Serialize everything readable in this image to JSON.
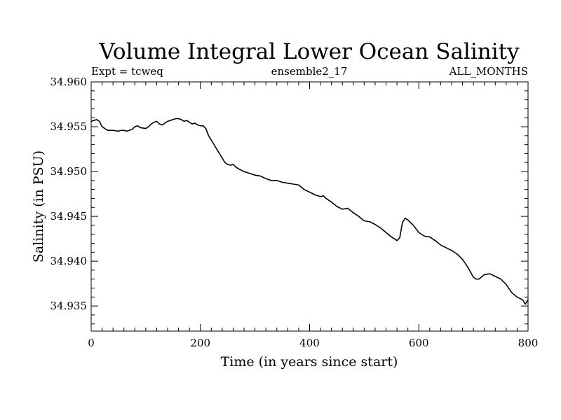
{
  "chart_data": {
    "type": "line",
    "title": "Volume Integral Lower Ocean Salinity",
    "subtitle_left": "Expt = tcweq",
    "subtitle_center": "ensemble2_17",
    "subtitle_right": "ALL_MONTHS",
    "xlabel": "Time (in years since start)",
    "ylabel": "Salinity (in PSU)",
    "xlim": [
      0,
      800
    ],
    "ylim": [
      34.9322,
      34.96
    ],
    "x_ticks": [
      0,
      200,
      400,
      600,
      800
    ],
    "x_tick_labels": [
      "0",
      "200",
      "400",
      "600",
      "800"
    ],
    "y_ticks": [
      34.935,
      34.94,
      34.945,
      34.95,
      34.955,
      34.96
    ],
    "y_tick_labels": [
      "34.935",
      "34.940",
      "34.945",
      "34.950",
      "34.955",
      "34.960"
    ],
    "x_minor_step": 20,
    "y_minor_step": 0.001,
    "grid": false,
    "series": [
      {
        "name": "salinity",
        "color": "#000000",
        "x": [
          0,
          10,
          15,
          20,
          30,
          40,
          50,
          55,
          60,
          65,
          70,
          75,
          80,
          85,
          90,
          100,
          105,
          110,
          115,
          120,
          125,
          130,
          135,
          140,
          145,
          150,
          155,
          160,
          165,
          170,
          175,
          180,
          185,
          190,
          195,
          200,
          205,
          210,
          215,
          220,
          225,
          230,
          235,
          240,
          245,
          250,
          255,
          260,
          265,
          270,
          280,
          290,
          300,
          310,
          320,
          330,
          340,
          350,
          360,
          370,
          380,
          390,
          400,
          410,
          420,
          425,
          430,
          440,
          450,
          460,
          470,
          480,
          490,
          500,
          510,
          520,
          530,
          540,
          550,
          560,
          565,
          570,
          575,
          580,
          590,
          600,
          610,
          620,
          630,
          640,
          650,
          660,
          670,
          680,
          690,
          700,
          705,
          710,
          720,
          730,
          740,
          750,
          760,
          770,
          780,
          790,
          795,
          800
        ],
        "y": [
          34.9556,
          34.9558,
          34.9556,
          34.955,
          34.9546,
          34.9546,
          34.9545,
          34.9546,
          34.9546,
          34.9545,
          34.9546,
          34.9547,
          34.955,
          34.9551,
          34.9549,
          34.9548,
          34.955,
          34.9553,
          34.9555,
          34.9556,
          34.9553,
          34.9552,
          34.9554,
          34.9556,
          34.9557,
          34.9558,
          34.9559,
          34.9559,
          34.9558,
          34.9556,
          34.9557,
          34.9555,
          34.9553,
          34.9554,
          34.9552,
          34.9551,
          34.9551,
          34.9548,
          34.954,
          34.9535,
          34.953,
          34.9525,
          34.952,
          34.9515,
          34.951,
          34.9508,
          34.9507,
          34.9508,
          34.9505,
          34.9503,
          34.95,
          34.9498,
          34.9496,
          34.9495,
          34.9492,
          34.949,
          34.949,
          34.9488,
          34.9487,
          34.9486,
          34.9485,
          34.948,
          34.9477,
          34.9474,
          34.9472,
          34.9473,
          34.947,
          34.9466,
          34.9461,
          34.9458,
          34.9459,
          34.9454,
          34.945,
          34.9445,
          34.9444,
          34.9441,
          34.9437,
          34.9432,
          34.9427,
          34.9423,
          34.9426,
          34.9443,
          34.9448,
          34.9446,
          34.944,
          34.9432,
          34.9428,
          34.9427,
          34.9423,
          34.9418,
          34.9415,
          34.9412,
          34.9408,
          34.9402,
          34.9393,
          34.9382,
          34.938,
          34.938,
          34.9385,
          34.9386,
          34.9383,
          34.938,
          34.9374,
          34.9365,
          34.936,
          34.9357,
          34.9352,
          34.9357
        ]
      }
    ]
  }
}
